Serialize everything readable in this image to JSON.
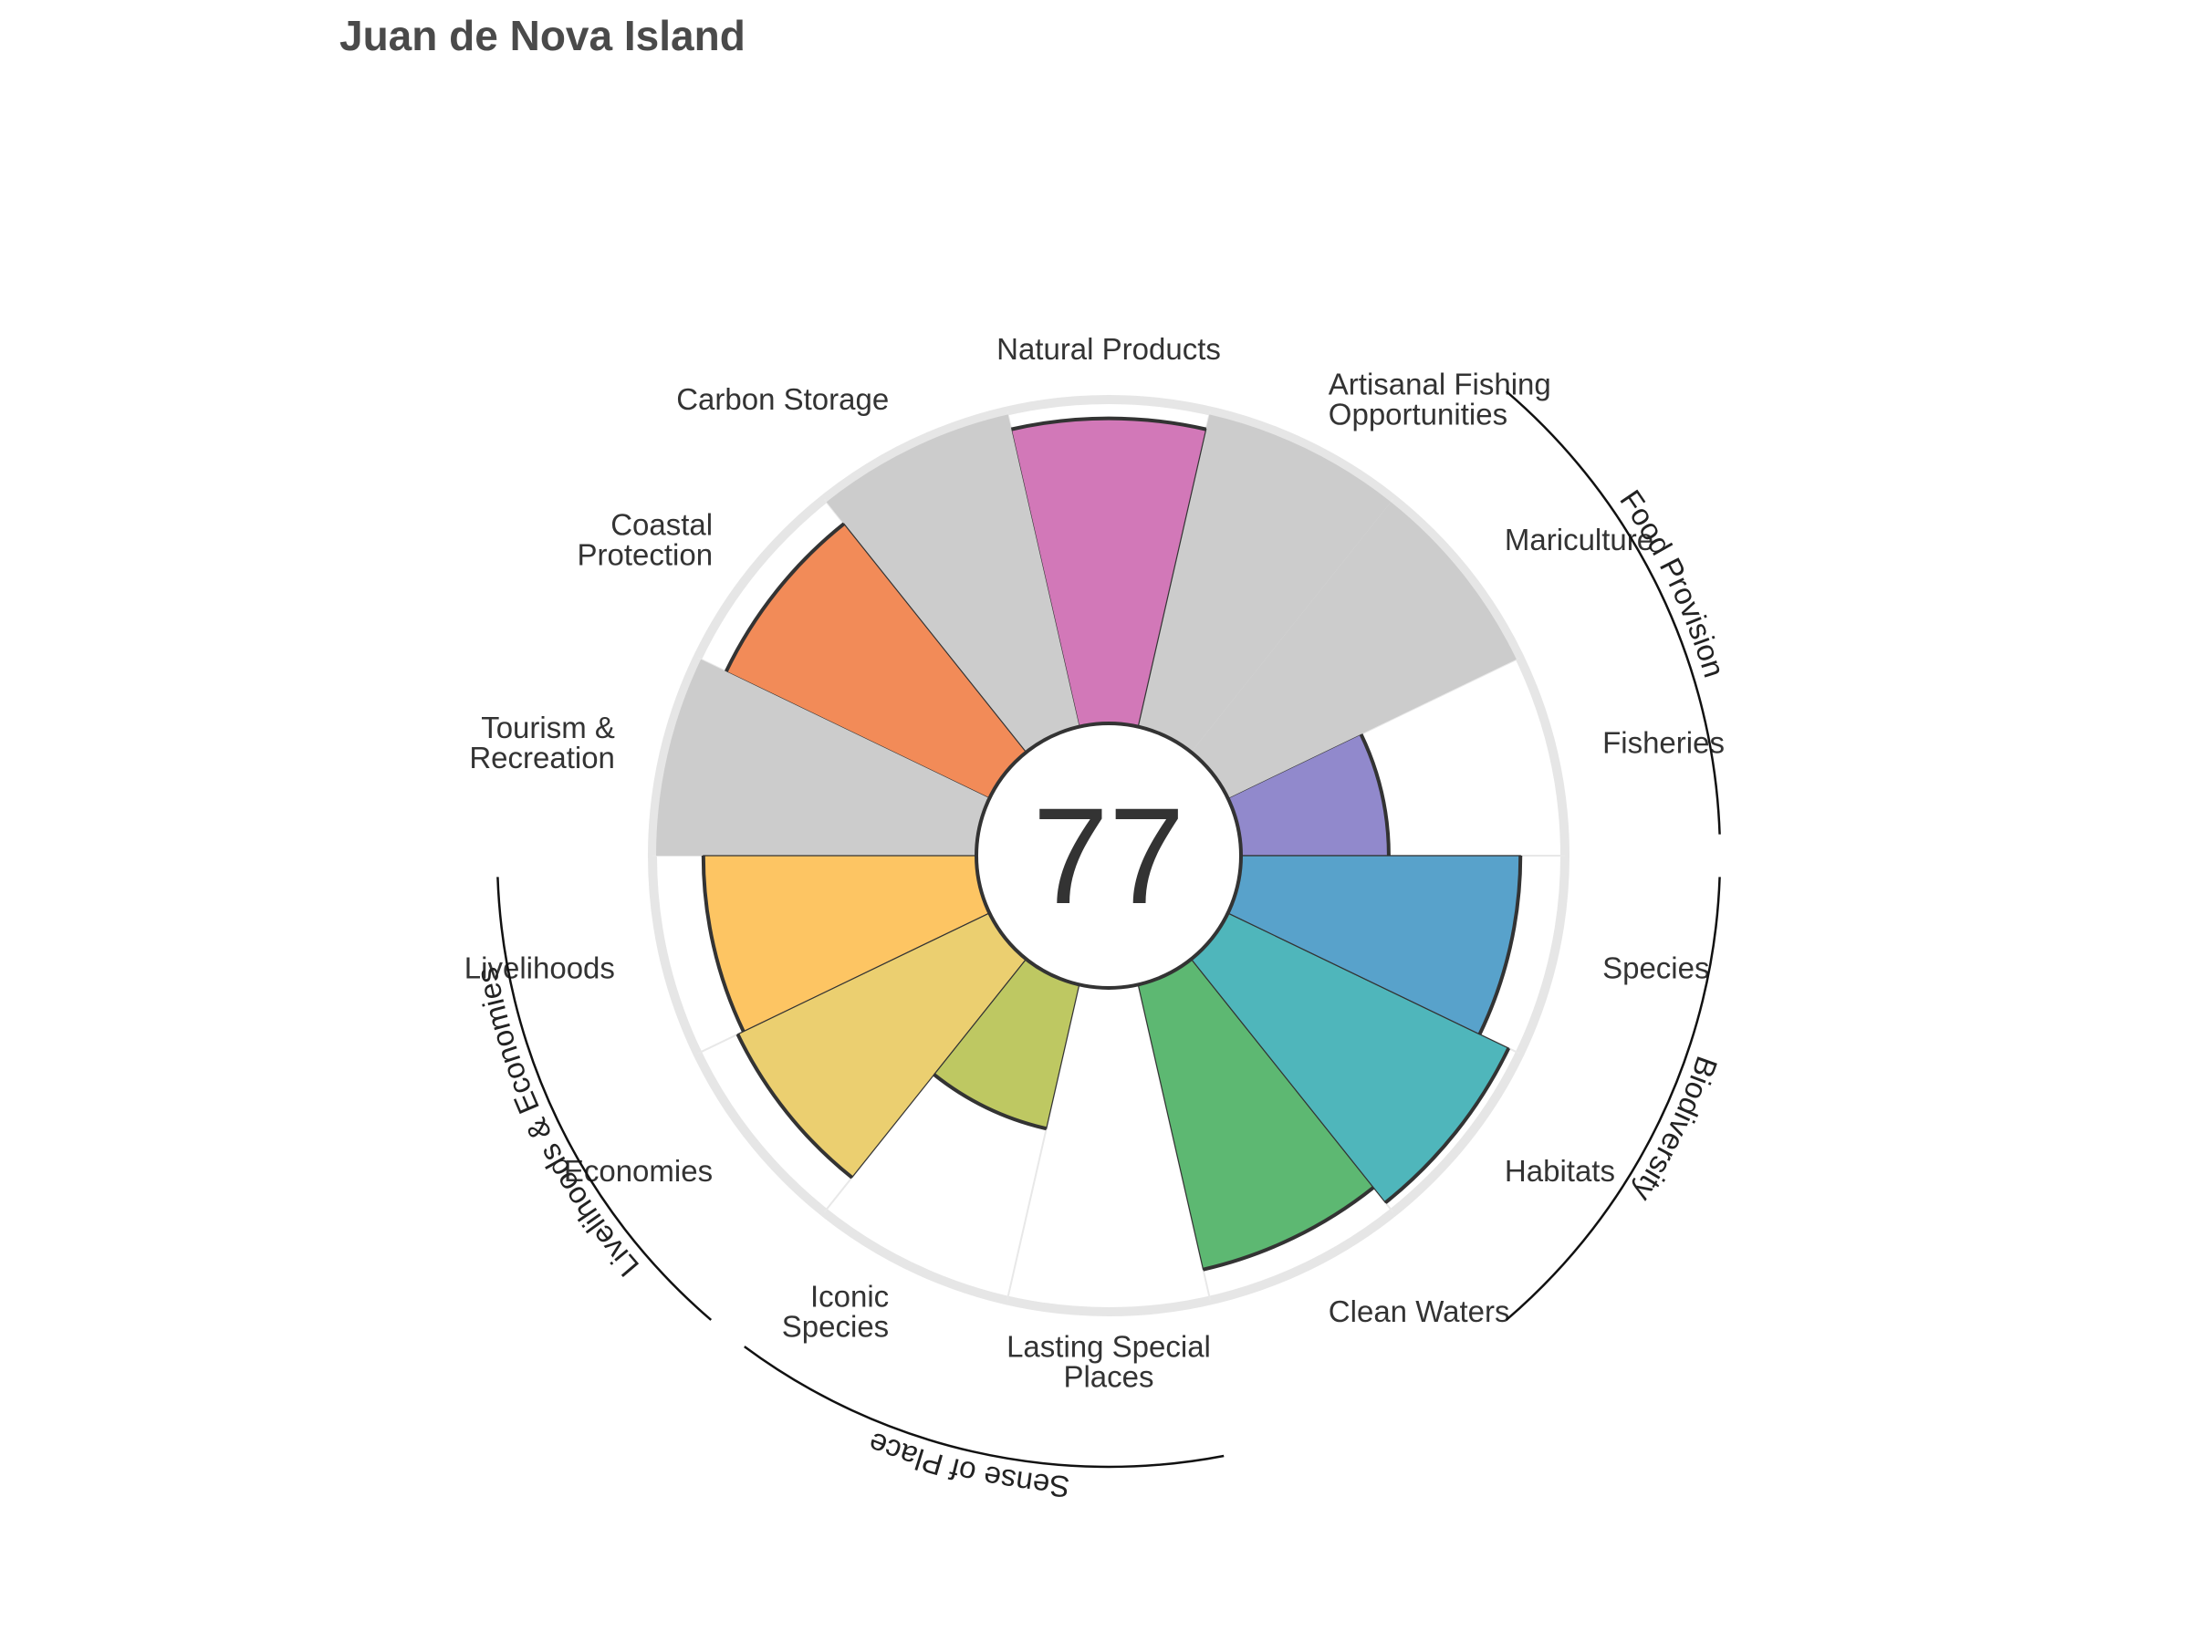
{
  "chart_data": {
    "type": "bar",
    "subtype": "polar-flower",
    "title": "Juan de Nova Island",
    "center_value": "77",
    "rlim": [
      0,
      100
    ],
    "goals": [
      {
        "name": "Fisheries",
        "label_lines": [
          "Fisheries"
        ],
        "score": 46,
        "color": "#9189cc"
      },
      {
        "name": "Mariculture",
        "label_lines": [
          "Mariculture"
        ],
        "score": null,
        "color": "#cccccc"
      },
      {
        "name": "Artisanal Fishing Opportunities",
        "label_lines": [
          "Artisanal Fishing",
          "Opportunities"
        ],
        "score": null,
        "color": "#cccccc"
      },
      {
        "name": "Natural Products",
        "label_lines": [
          "Natural Products"
        ],
        "score": 95,
        "color": "#d278b8"
      },
      {
        "name": "Carbon Storage",
        "label_lines": [
          "Carbon Storage"
        ],
        "score": null,
        "color": "#cccccc"
      },
      {
        "name": "Coastal Protection",
        "label_lines": [
          "Coastal",
          "Protection"
        ],
        "score": 91,
        "color": "#f28b58"
      },
      {
        "name": "Tourism & Recreation",
        "label_lines": [
          "Tourism &",
          "Recreation"
        ],
        "score": null,
        "color": "#cccccc"
      },
      {
        "name": "Livelihoods",
        "label_lines": [
          "Livelihoods"
        ],
        "score": 85,
        "color": "#fdc563"
      },
      {
        "name": "Economies",
        "label_lines": [
          "Economies"
        ],
        "score": 87,
        "color": "#ebcf70"
      },
      {
        "name": "Iconic Species",
        "label_lines": [
          "Iconic",
          "Species"
        ],
        "score": 46,
        "color": "#bec862"
      },
      {
        "name": "Lasting Special Places",
        "label_lines": [
          "Lasting Special",
          "Places"
        ],
        "score": 0,
        "color": "#ffffff"
      },
      {
        "name": "Clean Waters",
        "label_lines": [
          "Clean Waters"
        ],
        "score": 91,
        "color": "#5db872"
      },
      {
        "name": "Habitats",
        "label_lines": [
          "Habitats"
        ],
        "score": 97,
        "color": "#4fb6bb"
      },
      {
        "name": "Species",
        "label_lines": [
          "Species"
        ],
        "score": 87,
        "color": "#58a2cb"
      }
    ],
    "groups": [
      {
        "name": "Food Provision",
        "goals": [
          "Fisheries",
          "Mariculture"
        ]
      },
      {
        "name": "Biodiversity",
        "goals": [
          "Habitats",
          "Species"
        ]
      },
      {
        "name": "Sense of Place",
        "goals": [
          "Iconic Species",
          "Lasting Special Places"
        ]
      },
      {
        "name": "Livelihoods & Economies",
        "goals": [
          "Livelihoods",
          "Economies"
        ]
      }
    ],
    "colors": {
      "no_data": "#cccccc",
      "ring": "#e6e6e6",
      "outline": "#333333"
    },
    "grid": false,
    "legend": "none"
  }
}
